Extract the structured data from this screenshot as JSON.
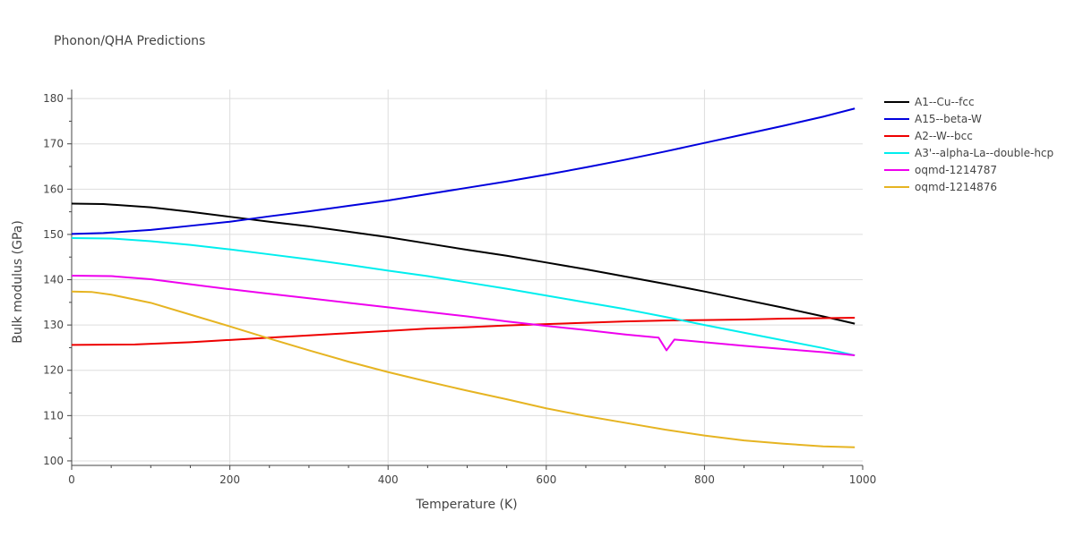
{
  "chart_data": {
    "type": "line",
    "title": "Phonon/QHA Predictions",
    "xlabel": "Temperature (K)",
    "ylabel": "Bulk modulus (GPa)",
    "xlim": [
      0,
      1000
    ],
    "ylim": [
      99,
      182
    ],
    "xticks": [
      0,
      200,
      400,
      600,
      800,
      1000
    ],
    "yticks": [
      100,
      110,
      120,
      130,
      140,
      150,
      160,
      170,
      180
    ],
    "grid": true,
    "legend_position": "top-right",
    "series": [
      {
        "name": "A1--Cu--fcc",
        "color": "#000000",
        "points": [
          [
            0,
            156.8
          ],
          [
            40,
            156.7
          ],
          [
            100,
            156.0
          ],
          [
            150,
            155.0
          ],
          [
            200,
            153.9
          ],
          [
            250,
            152.8
          ],
          [
            300,
            151.8
          ],
          [
            350,
            150.6
          ],
          [
            400,
            149.4
          ],
          [
            450,
            148.0
          ],
          [
            500,
            146.6
          ],
          [
            550,
            145.3
          ],
          [
            600,
            143.8
          ],
          [
            650,
            142.3
          ],
          [
            700,
            140.7
          ],
          [
            750,
            139.1
          ],
          [
            800,
            137.4
          ],
          [
            850,
            135.6
          ],
          [
            900,
            133.8
          ],
          [
            950,
            131.9
          ],
          [
            990,
            130.3
          ]
        ]
      },
      {
        "name": "A15--beta-W",
        "color": "#0000dd",
        "points": [
          [
            0,
            150.1
          ],
          [
            40,
            150.3
          ],
          [
            100,
            151.0
          ],
          [
            150,
            151.9
          ],
          [
            200,
            152.8
          ],
          [
            250,
            154.0
          ],
          [
            300,
            155.1
          ],
          [
            350,
            156.3
          ],
          [
            400,
            157.5
          ],
          [
            450,
            158.9
          ],
          [
            500,
            160.3
          ],
          [
            550,
            161.7
          ],
          [
            600,
            163.2
          ],
          [
            650,
            164.8
          ],
          [
            700,
            166.5
          ],
          [
            750,
            168.3
          ],
          [
            800,
            170.2
          ],
          [
            850,
            172.1
          ],
          [
            900,
            174.0
          ],
          [
            950,
            176.0
          ],
          [
            990,
            177.8
          ]
        ]
      },
      {
        "name": "A2--W--bcc",
        "color": "#ee0000",
        "points": [
          [
            0,
            125.6
          ],
          [
            80,
            125.7
          ],
          [
            150,
            126.2
          ],
          [
            200,
            126.7
          ],
          [
            250,
            127.2
          ],
          [
            300,
            127.7
          ],
          [
            350,
            128.2
          ],
          [
            400,
            128.7
          ],
          [
            450,
            129.2
          ],
          [
            500,
            129.5
          ],
          [
            550,
            129.9
          ],
          [
            600,
            130.2
          ],
          [
            650,
            130.5
          ],
          [
            700,
            130.8
          ],
          [
            750,
            131.0
          ],
          [
            800,
            131.1
          ],
          [
            850,
            131.2
          ],
          [
            900,
            131.4
          ],
          [
            950,
            131.5
          ],
          [
            990,
            131.6
          ]
        ]
      },
      {
        "name": "A3'--alpha-La--double-hcp",
        "color": "#00eeee",
        "points": [
          [
            0,
            149.2
          ],
          [
            50,
            149.1
          ],
          [
            100,
            148.5
          ],
          [
            150,
            147.7
          ],
          [
            200,
            146.7
          ],
          [
            250,
            145.6
          ],
          [
            300,
            144.5
          ],
          [
            350,
            143.3
          ],
          [
            400,
            142.0
          ],
          [
            450,
            140.8
          ],
          [
            500,
            139.4
          ],
          [
            550,
            138.0
          ],
          [
            600,
            136.5
          ],
          [
            650,
            135.0
          ],
          [
            700,
            133.5
          ],
          [
            750,
            131.8
          ],
          [
            800,
            130.0
          ],
          [
            850,
            128.3
          ],
          [
            900,
            126.6
          ],
          [
            950,
            124.9
          ],
          [
            990,
            123.3
          ]
        ]
      },
      {
        "name": "oqmd-1214787",
        "color": "#ee00ee",
        "points": [
          [
            0,
            140.9
          ],
          [
            50,
            140.8
          ],
          [
            100,
            140.1
          ],
          [
            150,
            139.0
          ],
          [
            200,
            137.9
          ],
          [
            250,
            136.9
          ],
          [
            300,
            135.9
          ],
          [
            350,
            134.9
          ],
          [
            400,
            133.9
          ],
          [
            450,
            132.9
          ],
          [
            500,
            131.9
          ],
          [
            550,
            130.8
          ],
          [
            600,
            129.8
          ],
          [
            650,
            128.9
          ],
          [
            700,
            127.9
          ],
          [
            742,
            127.2
          ],
          [
            752,
            124.4
          ],
          [
            762,
            126.8
          ],
          [
            800,
            126.2
          ],
          [
            850,
            125.4
          ],
          [
            900,
            124.7
          ],
          [
            950,
            124.0
          ],
          [
            990,
            123.3
          ]
        ]
      },
      {
        "name": "oqmd-1214876",
        "color": "#e6b422",
        "points": [
          [
            0,
            137.4
          ],
          [
            25,
            137.3
          ],
          [
            50,
            136.7
          ],
          [
            100,
            134.9
          ],
          [
            150,
            132.3
          ],
          [
            200,
            129.7
          ],
          [
            250,
            127.0
          ],
          [
            300,
            124.4
          ],
          [
            350,
            121.9
          ],
          [
            400,
            119.6
          ],
          [
            450,
            117.5
          ],
          [
            500,
            115.5
          ],
          [
            550,
            113.6
          ],
          [
            600,
            111.6
          ],
          [
            650,
            109.9
          ],
          [
            700,
            108.4
          ],
          [
            750,
            106.9
          ],
          [
            800,
            105.6
          ],
          [
            850,
            104.5
          ],
          [
            900,
            103.8
          ],
          [
            950,
            103.2
          ],
          [
            990,
            103.0
          ]
        ]
      }
    ]
  }
}
